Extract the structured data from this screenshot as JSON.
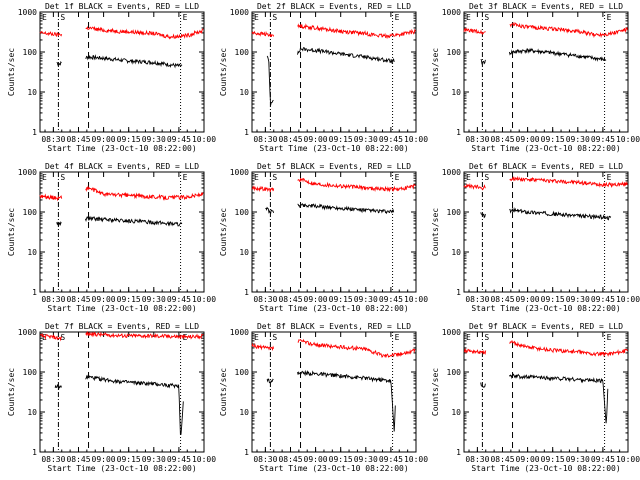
{
  "page": {
    "x_tick_labels": [
      "08:30",
      "08:45",
      "09:00",
      "09:15",
      "09:30",
      "09:45",
      "10:00"
    ],
    "y_tick_labels": [
      "1",
      "10",
      "100",
      "1000"
    ],
    "ylabel": "Counts/sec",
    "xlabel": "Start Time (23-Oct-10 08:22:00)",
    "marker_S": "S",
    "marker_E": "E",
    "colors": {
      "events": "#000000",
      "lld": "#ff0000",
      "axes": "#000000"
    }
  },
  "chart_data": [
    {
      "type": "line",
      "title": "Det 1f BLACK = Events, RED = LLD",
      "xlabel": "Start Time (23-Oct-10 08:22:00)",
      "ylabel": "Counts/sec",
      "xlim": [
        "08:22",
        "10:00"
      ],
      "ylim": [
        1,
        1000
      ],
      "yscale": "log",
      "vlines": [
        {
          "time": "08:33",
          "style": "dash-dot"
        },
        {
          "time": "08:51",
          "style": "dashed"
        },
        {
          "time": "09:46",
          "style": "dotted"
        }
      ],
      "gap": [
        "08:35",
        "08:49"
      ],
      "series": [
        {
          "name": "Events",
          "color": "#000000",
          "points": [
            [
              "08:32",
              55
            ],
            [
              "08:33",
              50
            ],
            [
              "08:51",
              75
            ],
            [
              "09:00",
              70
            ],
            [
              "09:15",
              60
            ],
            [
              "09:30",
              55
            ],
            [
              "09:45",
              45
            ],
            [
              "09:47",
              45
            ]
          ]
        },
        {
          "name": "LLD",
          "color": "#ff0000",
          "points": [
            [
              "08:22",
              300
            ],
            [
              "08:30",
              280
            ],
            [
              "08:33",
              270
            ],
            [
              "08:51",
              400
            ],
            [
              "09:00",
              350
            ],
            [
              "09:15",
              320
            ],
            [
              "09:30",
              290
            ],
            [
              "09:40",
              240
            ],
            [
              "09:50",
              260
            ],
            [
              "10:00",
              350
            ]
          ]
        }
      ]
    },
    {
      "type": "line",
      "title": "Det 2f BLACK = Events, RED = LLD",
      "xlabel": "Start Time (23-Oct-10 08:22:00)",
      "ylabel": "Counts/sec",
      "xlim": [
        "08:22",
        "10:00"
      ],
      "ylim": [
        1,
        1000
      ],
      "yscale": "log",
      "vlines": [
        {
          "time": "08:33",
          "style": "dash-dot"
        },
        {
          "time": "08:51",
          "style": "dashed"
        },
        {
          "time": "09:46",
          "style": "dotted"
        }
      ],
      "gap": [
        "08:35",
        "08:49"
      ],
      "series": [
        {
          "name": "Events",
          "color": "#000000",
          "points": [
            [
              "08:31",
              80
            ],
            [
              "08:32",
              60
            ],
            [
              "08:33",
              5
            ],
            [
              "08:51",
              120
            ],
            [
              "09:00",
              110
            ],
            [
              "09:15",
              90
            ],
            [
              "09:30",
              75
            ],
            [
              "09:45",
              60
            ],
            [
              "09:47",
              60
            ]
          ]
        },
        {
          "name": "LLD",
          "color": "#ff0000",
          "points": [
            [
              "08:22",
              300
            ],
            [
              "08:30",
              280
            ],
            [
              "08:33",
              260
            ],
            [
              "08:51",
              450
            ],
            [
              "09:00",
              400
            ],
            [
              "09:15",
              330
            ],
            [
              "09:30",
              290
            ],
            [
              "09:40",
              250
            ],
            [
              "09:50",
              270
            ],
            [
              "10:00",
              330
            ]
          ]
        }
      ]
    },
    {
      "type": "line",
      "title": "Det 3f BLACK = Events, RED = LLD",
      "xlabel": "Start Time (23-Oct-10 08:22:00)",
      "ylabel": "Counts/sec",
      "xlim": [
        "08:22",
        "10:00"
      ],
      "ylim": [
        1,
        1000
      ],
      "yscale": "log",
      "vlines": [
        {
          "time": "08:33",
          "style": "dash-dot"
        },
        {
          "time": "08:51",
          "style": "dashed"
        },
        {
          "time": "09:46",
          "style": "dotted"
        }
      ],
      "gap": [
        "08:35",
        "08:49"
      ],
      "series": [
        {
          "name": "Events",
          "color": "#000000",
          "points": [
            [
              "08:32",
              60
            ],
            [
              "08:33",
              55
            ],
            [
              "08:51",
              100
            ],
            [
              "09:00",
              110
            ],
            [
              "09:15",
              95
            ],
            [
              "09:30",
              80
            ],
            [
              "09:45",
              65
            ],
            [
              "09:47",
              65
            ]
          ]
        },
        {
          "name": "LLD",
          "color": "#ff0000",
          "points": [
            [
              "08:22",
              350
            ],
            [
              "08:30",
              330
            ],
            [
              "08:33",
              300
            ],
            [
              "08:51",
              500
            ],
            [
              "09:00",
              420
            ],
            [
              "09:15",
              380
            ],
            [
              "09:30",
              330
            ],
            [
              "09:40",
              270
            ],
            [
              "09:50",
              290
            ],
            [
              "10:00",
              380
            ]
          ]
        }
      ]
    },
    {
      "type": "line",
      "title": "Det 4f BLACK = Events, RED = LLD",
      "xlabel": "Start Time (23-Oct-10 08:22:00)",
      "ylabel": "Counts/sec",
      "xlim": [
        "08:22",
        "10:00"
      ],
      "ylim": [
        1,
        1000
      ],
      "yscale": "log",
      "vlines": [
        {
          "time": "08:33",
          "style": "dash-dot"
        },
        {
          "time": "08:51",
          "style": "dashed"
        },
        {
          "time": "09:46",
          "style": "dotted"
        }
      ],
      "gap": [
        "08:35",
        "08:49"
      ],
      "series": [
        {
          "name": "Events",
          "color": "#000000",
          "points": [
            [
              "08:32",
              55
            ],
            [
              "08:33",
              50
            ],
            [
              "08:51",
              70
            ],
            [
              "09:00",
              65
            ],
            [
              "09:15",
              60
            ],
            [
              "09:30",
              55
            ],
            [
              "09:45",
              50
            ],
            [
              "09:47",
              50
            ]
          ]
        },
        {
          "name": "LLD",
          "color": "#ff0000",
          "points": [
            [
              "08:22",
              250
            ],
            [
              "08:30",
              230
            ],
            [
              "08:33",
              220
            ],
            [
              "08:51",
              400
            ],
            [
              "09:00",
              280
            ],
            [
              "09:15",
              260
            ],
            [
              "09:30",
              240
            ],
            [
              "09:40",
              230
            ],
            [
              "09:50",
              240
            ],
            [
              "10:00",
              280
            ]
          ]
        }
      ]
    },
    {
      "type": "line",
      "title": "Det 5f BLACK = Events, RED = LLD",
      "xlabel": "Start Time (23-Oct-10 08:22:00)",
      "ylabel": "Counts/sec",
      "xlim": [
        "08:22",
        "10:00"
      ],
      "ylim": [
        1,
        1000
      ],
      "yscale": "log",
      "vlines": [
        {
          "time": "08:33",
          "style": "dash-dot"
        },
        {
          "time": "08:51",
          "style": "dashed"
        },
        {
          "time": "09:46",
          "style": "dotted"
        }
      ],
      "gap": [
        "08:35",
        "08:49"
      ],
      "series": [
        {
          "name": "Events",
          "color": "#000000",
          "points": [
            [
              "08:30",
              130
            ],
            [
              "08:32",
              110
            ],
            [
              "08:33",
              100
            ],
            [
              "08:51",
              150
            ],
            [
              "09:00",
              140
            ],
            [
              "09:15",
              125
            ],
            [
              "09:30",
              110
            ],
            [
              "09:45",
              100
            ],
            [
              "09:47",
              105
            ]
          ]
        },
        {
          "name": "LLD",
          "color": "#ff0000",
          "points": [
            [
              "08:22",
              400
            ],
            [
              "08:30",
              380
            ],
            [
              "08:33",
              350
            ],
            [
              "08:51",
              650
            ],
            [
              "09:00",
              500
            ],
            [
              "09:15",
              450
            ],
            [
              "09:30",
              400
            ],
            [
              "09:40",
              380
            ],
            [
              "09:50",
              370
            ],
            [
              "10:00",
              450
            ]
          ]
        }
      ]
    },
    {
      "type": "line",
      "title": "Det 6f BLACK = Events, RED = LLD",
      "xlabel": "Start Time (23-Oct-10 08:22:00)",
      "ylabel": "Counts/sec",
      "xlim": [
        "08:22",
        "10:00"
      ],
      "ylim": [
        1,
        1000
      ],
      "yscale": "log",
      "vlines": [
        {
          "time": "08:33",
          "style": "dash-dot"
        },
        {
          "time": "08:51",
          "style": "dashed"
        },
        {
          "time": "09:46",
          "style": "dotted"
        }
      ],
      "gap": [
        "08:35",
        "08:49"
      ],
      "series": [
        {
          "name": "Events",
          "color": "#000000",
          "points": [
            [
              "08:32",
              90
            ],
            [
              "08:33",
              80
            ],
            [
              "08:51",
              110
            ],
            [
              "09:00",
              100
            ],
            [
              "09:15",
              90
            ],
            [
              "09:30",
              80
            ],
            [
              "09:45",
              75
            ],
            [
              "09:50",
              70
            ]
          ]
        },
        {
          "name": "LLD",
          "color": "#ff0000",
          "points": [
            [
              "08:22",
              450
            ],
            [
              "08:30",
              420
            ],
            [
              "08:33",
              400
            ],
            [
              "08:51",
              700
            ],
            [
              "09:00",
              650
            ],
            [
              "09:15",
              600
            ],
            [
              "09:30",
              550
            ],
            [
              "09:40",
              500
            ],
            [
              "09:50",
              480
            ],
            [
              "10:00",
              500
            ]
          ]
        }
      ]
    },
    {
      "type": "line",
      "title": "Det 7f BLACK = Events, RED = LLD",
      "xlabel": "Start Time (23-Oct-10 08:22:00)",
      "ylabel": "Counts/sec",
      "xlim": [
        "08:22",
        "10:00"
      ],
      "ylim": [
        1,
        1000
      ],
      "yscale": "log",
      "vlines": [
        {
          "time": "08:33",
          "style": "dash-dot"
        },
        {
          "time": "08:51",
          "style": "dashed"
        },
        {
          "time": "09:46",
          "style": "dotted"
        }
      ],
      "gap": [
        "08:35",
        "08:49"
      ],
      "series": [
        {
          "name": "Events",
          "color": "#000000",
          "points": [
            [
              "08:31",
              40
            ],
            [
              "08:32",
              45
            ],
            [
              "08:33",
              40
            ],
            [
              "08:51",
              75
            ],
            [
              "09:00",
              65
            ],
            [
              "09:15",
              55
            ],
            [
              "09:30",
              50
            ],
            [
              "09:45",
              45
            ],
            [
              "09:46",
              2
            ],
            [
              "09:48",
              30
            ]
          ]
        },
        {
          "name": "LLD",
          "color": "#ff0000",
          "points": [
            [
              "08:22",
              800
            ],
            [
              "08:30",
              750
            ],
            [
              "08:33",
              700
            ],
            [
              "08:51",
              900
            ],
            [
              "09:00",
              850
            ],
            [
              "09:15",
              800
            ],
            [
              "09:30",
              800
            ],
            [
              "09:40",
              780
            ],
            [
              "09:50",
              750
            ],
            [
              "10:00",
              800
            ]
          ]
        }
      ]
    },
    {
      "type": "line",
      "title": "Det 8f BLACK = Events, RED = LLD",
      "xlabel": "Start Time (23-Oct-10 08:22:00)",
      "ylabel": "Counts/sec",
      "xlim": [
        "08:22",
        "10:00"
      ],
      "ylim": [
        1,
        1000
      ],
      "yscale": "log",
      "vlines": [
        {
          "time": "08:33",
          "style": "dash-dot"
        },
        {
          "time": "08:51",
          "style": "dashed"
        },
        {
          "time": "09:46",
          "style": "dotted"
        }
      ],
      "gap": [
        "08:35",
        "08:49"
      ],
      "series": [
        {
          "name": "Events",
          "color": "#000000",
          "points": [
            [
              "08:31",
              70
            ],
            [
              "08:32",
              60
            ],
            [
              "08:33",
              60
            ],
            [
              "08:51",
              95
            ],
            [
              "09:00",
              90
            ],
            [
              "09:15",
              80
            ],
            [
              "09:30",
              70
            ],
            [
              "09:45",
              60
            ],
            [
              "09:47",
              3
            ],
            [
              "09:48",
              40
            ]
          ]
        },
        {
          "name": "LLD",
          "color": "#ff0000",
          "points": [
            [
              "08:22",
              450
            ],
            [
              "08:30",
              400
            ],
            [
              "08:33",
              380
            ],
            [
              "08:51",
              600
            ],
            [
              "09:00",
              480
            ],
            [
              "09:15",
              420
            ],
            [
              "09:30",
              380
            ],
            [
              "09:40",
              260
            ],
            [
              "09:50",
              280
            ],
            [
              "10:00",
              350
            ]
          ]
        }
      ]
    },
    {
      "type": "line",
      "title": "Det 9f BLACK = Events, RED = LLD",
      "xlabel": "Start Time (23-Oct-10 08:22:00)",
      "ylabel": "Counts/sec",
      "xlim": [
        "08:22",
        "10:00"
      ],
      "ylim": [
        1,
        1000
      ],
      "yscale": "log",
      "vlines": [
        {
          "time": "08:33",
          "style": "dash-dot"
        },
        {
          "time": "08:51",
          "style": "dashed"
        },
        {
          "time": "09:46",
          "style": "dotted"
        }
      ],
      "gap": [
        "08:35",
        "08:49"
      ],
      "series": [
        {
          "name": "Events",
          "color": "#000000",
          "points": [
            [
              "08:32",
              50
            ],
            [
              "08:33",
              45
            ],
            [
              "08:51",
              80
            ],
            [
              "09:00",
              75
            ],
            [
              "09:15",
              70
            ],
            [
              "09:30",
              65
            ],
            [
              "09:45",
              60
            ],
            [
              "09:47",
              5
            ],
            [
              "09:48",
              40
            ]
          ]
        },
        {
          "name": "LLD",
          "color": "#ff0000",
          "points": [
            [
              "08:22",
              350
            ],
            [
              "08:30",
              320
            ],
            [
              "08:33",
              300
            ],
            [
              "08:51",
              550
            ],
            [
              "09:00",
              420
            ],
            [
              "09:15",
              350
            ],
            [
              "09:30",
              320
            ],
            [
              "09:40",
              280
            ],
            [
              "09:50",
              290
            ],
            [
              "10:00",
              350
            ]
          ]
        }
      ]
    }
  ]
}
